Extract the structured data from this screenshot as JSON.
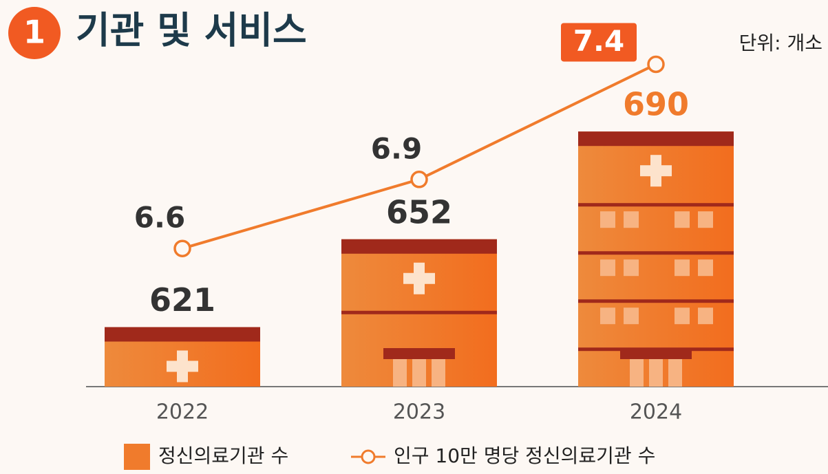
{
  "chart_data": {
    "type": "bar",
    "section_number": "1",
    "title": "기관 및 서비스",
    "unit_label": "단위: 개소",
    "categories": [
      "2022",
      "2023",
      "2024"
    ],
    "series": [
      {
        "name": "정신의료기관 수",
        "type": "bar",
        "color": "#f07b2c",
        "values": [
          621,
          652,
          690
        ]
      },
      {
        "name": "인구 10만 명당 정신의료기관 수",
        "type": "line",
        "axis": "y2",
        "color": "#f07b2c",
        "values": [
          6.6,
          6.9,
          7.4
        ]
      }
    ],
    "ylim": [
      600,
      700
    ],
    "y2lim": [
      6.0,
      7.5
    ]
  }
}
